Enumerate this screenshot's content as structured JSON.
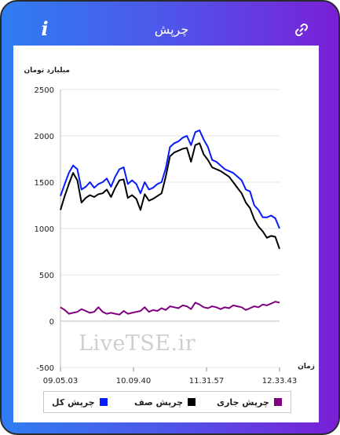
{
  "header": {
    "title": "چرپش",
    "info_icon": "info-icon",
    "info_label": "i",
    "link_icon": "link-icon"
  },
  "watermark": "LiveTSE.ir",
  "colors": {
    "frame_left": "#2f7df2",
    "frame_right": "#7a1fd6",
    "total": "#0a1aff",
    "queue": "#000000",
    "current": "#800080"
  },
  "chart_data": {
    "type": "line",
    "ylabel": "میلیارد تومان",
    "xlabel": "زمان",
    "ylim": [
      -500,
      2500
    ],
    "yticks": [
      -500,
      0,
      500,
      1000,
      1500,
      2000,
      2500
    ],
    "xticks": [
      "09.05.03",
      "10.09.40",
      "11.31.57",
      "12.33.43"
    ],
    "legend_position": "bottom",
    "series": [
      {
        "name": "چرپش کل",
        "color": "#0a1aff",
        "values": [
          1350,
          1480,
          1600,
          1680,
          1640,
          1420,
          1450,
          1500,
          1440,
          1480,
          1500,
          1540,
          1450,
          1560,
          1640,
          1660,
          1480,
          1520,
          1480,
          1380,
          1500,
          1420,
          1440,
          1480,
          1500,
          1650,
          1880,
          1920,
          1940,
          1980,
          2000,
          1900,
          2040,
          2060,
          1960,
          1880,
          1740,
          1720,
          1680,
          1640,
          1620,
          1600,
          1560,
          1520,
          1420,
          1400,
          1250,
          1200,
          1120,
          1120,
          1140,
          1110,
          1000
        ]
      },
      {
        "name": "چرپش صف",
        "color": "#000000",
        "values": [
          1200,
          1350,
          1480,
          1600,
          1520,
          1280,
          1330,
          1360,
          1340,
          1370,
          1380,
          1420,
          1340,
          1440,
          1520,
          1530,
          1330,
          1360,
          1320,
          1200,
          1370,
          1300,
          1320,
          1350,
          1380,
          1560,
          1780,
          1820,
          1840,
          1860,
          1870,
          1720,
          1900,
          1920,
          1800,
          1740,
          1660,
          1640,
          1620,
          1590,
          1560,
          1500,
          1440,
          1380,
          1280,
          1220,
          1100,
          1020,
          970,
          900,
          920,
          910,
          780
        ]
      },
      {
        "name": "چرپش جاری",
        "color": "#800080",
        "values": [
          150,
          120,
          80,
          90,
          100,
          130,
          110,
          90,
          100,
          150,
          100,
          80,
          90,
          80,
          70,
          110,
          80,
          90,
          100,
          110,
          150,
          100,
          120,
          110,
          140,
          120,
          160,
          150,
          140,
          170,
          160,
          130,
          200,
          180,
          150,
          140,
          160,
          150,
          130,
          150,
          140,
          170,
          160,
          150,
          120,
          140,
          160,
          150,
          180,
          170,
          190,
          210,
          200
        ]
      }
    ]
  }
}
